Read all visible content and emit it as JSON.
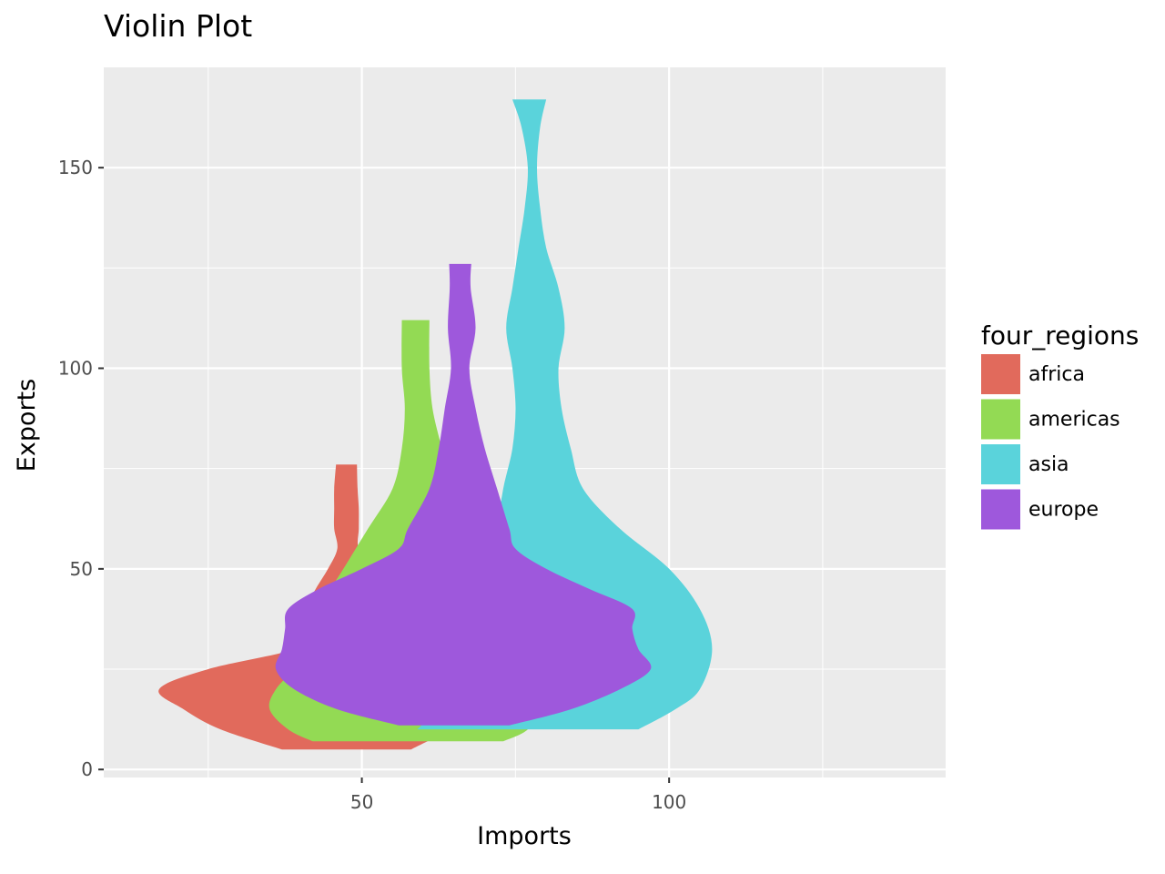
{
  "chart_data": {
    "type": "violin",
    "title": "Violin Plot",
    "xlabel": "Imports",
    "ylabel": "Exports",
    "xlim": [
      8,
      145
    ],
    "ylim": [
      -2,
      175
    ],
    "x_ticks": [
      50,
      100
    ],
    "x_minor_ticks": [
      25,
      75,
      125
    ],
    "y_ticks": [
      0,
      50,
      100,
      150
    ],
    "y_minor_ticks": [
      25,
      75,
      125
    ],
    "grid": true,
    "legend": {
      "title": "four_regions",
      "position": "right",
      "entries": [
        "africa",
        "americas",
        "asia",
        "europe"
      ]
    },
    "series": [
      {
        "name": "africa",
        "color": "#E16A5C",
        "profile": [
          {
            "y": 5,
            "left": 37,
            "right": 58
          },
          {
            "y": 10,
            "left": 27,
            "right": 64
          },
          {
            "y": 15,
            "left": 21,
            "right": 66
          },
          {
            "y": 20,
            "left": 17,
            "right": 65
          },
          {
            "y": 25,
            "left": 25,
            "right": 62
          },
          {
            "y": 30,
            "left": 39,
            "right": 60
          },
          {
            "y": 35,
            "left": 43,
            "right": 59
          },
          {
            "y": 40,
            "left": 41,
            "right": 58
          },
          {
            "y": 45,
            "left": 42.5,
            "right": 55
          },
          {
            "y": 50,
            "left": 44.5,
            "right": 52
          },
          {
            "y": 55,
            "left": 46,
            "right": 49.5
          },
          {
            "y": 60,
            "left": 45.5,
            "right": 49.5
          },
          {
            "y": 65,
            "left": 45.5,
            "right": 49.5
          },
          {
            "y": 70,
            "left": 45.5,
            "right": 49.3
          },
          {
            "y": 76,
            "left": 45.8,
            "right": 49.2
          }
        ]
      },
      {
        "name": "americas",
        "color": "#93DA54",
        "profile": [
          {
            "y": 7,
            "left": 42,
            "right": 73
          },
          {
            "y": 10,
            "left": 38,
            "right": 77
          },
          {
            "y": 15,
            "left": 35,
            "right": 78
          },
          {
            "y": 20,
            "left": 36,
            "right": 76
          },
          {
            "y": 25,
            "left": 39,
            "right": 73
          },
          {
            "y": 30,
            "left": 41,
            "right": 71
          },
          {
            "y": 40,
            "left": 43,
            "right": 68
          },
          {
            "y": 50,
            "left": 47,
            "right": 67
          },
          {
            "y": 60,
            "left": 51,
            "right": 66
          },
          {
            "y": 70,
            "left": 55,
            "right": 64.5
          },
          {
            "y": 80,
            "left": 56.5,
            "right": 63
          },
          {
            "y": 90,
            "left": 57,
            "right": 61.5
          },
          {
            "y": 100,
            "left": 56.5,
            "right": 61
          },
          {
            "y": 112,
            "left": 56.5,
            "right": 61
          }
        ]
      },
      {
        "name": "asia",
        "color": "#5AD3DB",
        "profile": [
          {
            "y": 10,
            "left": 59,
            "right": 95
          },
          {
            "y": 15,
            "left": 63,
            "right": 101
          },
          {
            "y": 20,
            "left": 70,
            "right": 105
          },
          {
            "y": 30,
            "left": 71,
            "right": 107
          },
          {
            "y": 40,
            "left": 70.5,
            "right": 105
          },
          {
            "y": 50,
            "left": 71,
            "right": 100
          },
          {
            "y": 60,
            "left": 72,
            "right": 92
          },
          {
            "y": 70,
            "left": 73,
            "right": 86
          },
          {
            "y": 80,
            "left": 74.5,
            "right": 84
          },
          {
            "y": 90,
            "left": 75,
            "right": 82.5
          },
          {
            "y": 100,
            "left": 74.5,
            "right": 82
          },
          {
            "y": 110,
            "left": 73.5,
            "right": 83
          },
          {
            "y": 120,
            "left": 74.5,
            "right": 82
          },
          {
            "y": 130,
            "left": 75.5,
            "right": 80
          },
          {
            "y": 140,
            "left": 76.5,
            "right": 79
          },
          {
            "y": 150,
            "left": 77,
            "right": 78.5
          },
          {
            "y": 160,
            "left": 76,
            "right": 79
          },
          {
            "y": 167,
            "left": 74.5,
            "right": 80
          }
        ]
      },
      {
        "name": "europe",
        "color": "#9E58DC",
        "profile": [
          {
            "y": 11,
            "left": 56,
            "right": 74
          },
          {
            "y": 15,
            "left": 46,
            "right": 84
          },
          {
            "y": 20,
            "left": 39,
            "right": 92
          },
          {
            "y": 25,
            "left": 36,
            "right": 97
          },
          {
            "y": 30,
            "left": 37,
            "right": 95
          },
          {
            "y": 35,
            "left": 37.5,
            "right": 94
          },
          {
            "y": 40,
            "left": 38,
            "right": 94
          },
          {
            "y": 45,
            "left": 43,
            "right": 87
          },
          {
            "y": 50,
            "left": 50,
            "right": 80
          },
          {
            "y": 55,
            "left": 56,
            "right": 75
          },
          {
            "y": 60,
            "left": 57.5,
            "right": 74
          },
          {
            "y": 70,
            "left": 61,
            "right": 72
          },
          {
            "y": 80,
            "left": 62.5,
            "right": 70
          },
          {
            "y": 90,
            "left": 63.5,
            "right": 68.5
          },
          {
            "y": 100,
            "left": 64.5,
            "right": 67.5
          },
          {
            "y": 110,
            "left": 64,
            "right": 68.5
          },
          {
            "y": 120,
            "left": 64.3,
            "right": 67.7
          },
          {
            "y": 126,
            "left": 64.2,
            "right": 67.8
          }
        ]
      }
    ]
  }
}
